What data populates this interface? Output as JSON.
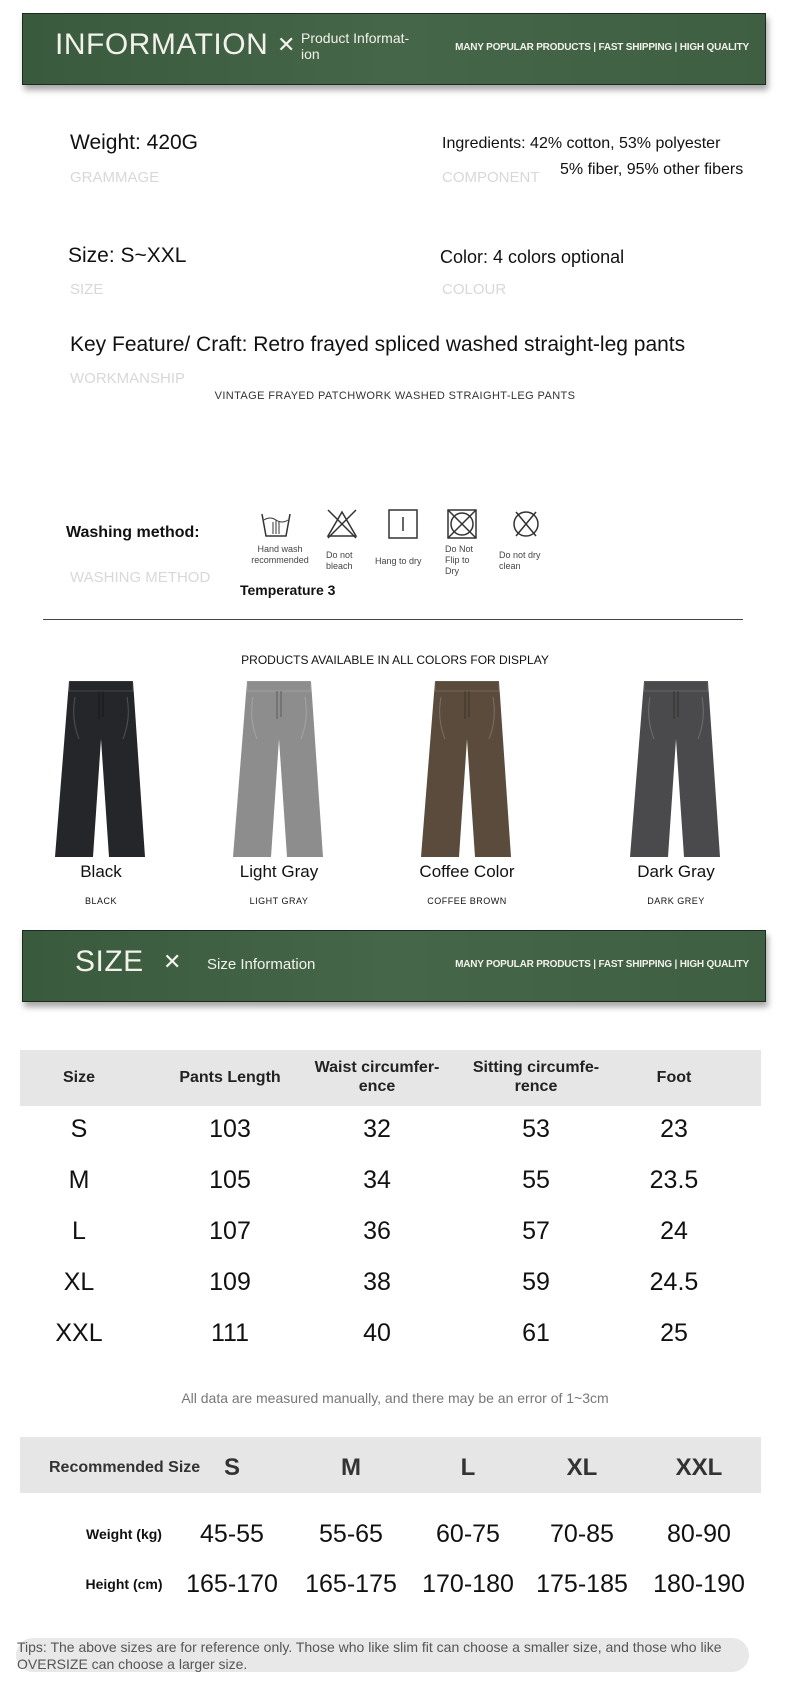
{
  "info_banner": {
    "title": "INFORMATION",
    "subtitle": "Product Informat-\nion",
    "tagline": "MANY POPULAR PRODUCTS | FAST SHIPPING | HIGH QUALITY",
    "color": "#3f5f43"
  },
  "specs": {
    "weight": {
      "label": "Weight: 420G",
      "sub": "GRAMMAGE"
    },
    "ingredients": {
      "label": "Ingredients: 42% cotton, 53% polyester",
      "label2": "5% fiber, 95% other fibers",
      "sub": "COMPONENT"
    },
    "size": {
      "label": "Size: S~XXL",
      "sub": "SIZE"
    },
    "color": {
      "label": "Color: 4 colors optional",
      "sub": "COLOUR"
    },
    "feature": {
      "label": "Key Feature/ Craft: Retro frayed spliced washed straight-leg pants",
      "sub": "WORKMANSHIP",
      "caption": "VINTAGE FRAYED PATCHWORK WASHED STRAIGHT-LEG PANTS"
    },
    "washing": {
      "label": "Washing method:",
      "sub": "WASHING METHOD",
      "temperature": "Temperature 3",
      "icons": [
        {
          "icon": "hand-wash-icon",
          "text": "Hand wash recommended"
        },
        {
          "icon": "do-not-bleach-icon",
          "text": "Do not bleach"
        },
        {
          "icon": "hang-to-dry-icon",
          "text": "Hang to dry"
        },
        {
          "icon": "do-not-tumble-dry-icon",
          "text": "Do Not Flip to Dry"
        },
        {
          "icon": "do-not-dry-clean-icon",
          "text": "Do not dry clean"
        }
      ]
    }
  },
  "colors_section": {
    "title": "PRODUCTS AVAILABLE IN ALL COLORS FOR DISPLAY",
    "items": [
      {
        "name": "Black",
        "sub": "BLACK",
        "color": "#25262a"
      },
      {
        "name": "Light Gray",
        "sub": "LIGHT GRAY",
        "color": "#8d8d8d"
      },
      {
        "name": "Coffee Color",
        "sub": "COFFEE BROWN",
        "color": "#5b4b3d"
      },
      {
        "name": "Dark Gray",
        "sub": "DARK GREY",
        "color": "#4a4a4c"
      }
    ]
  },
  "size_banner": {
    "title": "SIZE",
    "subtitle": "Size Information",
    "tagline": "MANY POPULAR PRODUCTS | FAST SHIPPING | HIGH QUALITY"
  },
  "size_table": {
    "headers": [
      "Size",
      "Pants Length",
      "Waist circumfer-\nence",
      "Sitting circumfe-\nrence",
      "Foot"
    ],
    "rows": [
      [
        "S",
        "103",
        "32",
        "53",
        "23"
      ],
      [
        "M",
        "105",
        "34",
        "55",
        "23.5"
      ],
      [
        "L",
        "107",
        "36",
        "57",
        "24"
      ],
      [
        "XL",
        "109",
        "38",
        "59",
        "24.5"
      ],
      [
        "XXL",
        "111",
        "40",
        "61",
        "25"
      ]
    ],
    "note": "All data are measured manually, and there may be an error of 1~3cm"
  },
  "recommended": {
    "headers": [
      "Recommended Size",
      "S",
      "M",
      "L",
      "XL",
      "XXL"
    ],
    "rows": [
      [
        "Weight (kg)",
        "45-55",
        "55-65",
        "60-75",
        "70-85",
        "80-90"
      ],
      [
        "Height (cm)",
        "165-170",
        "165-175",
        "170-180",
        "175-185",
        "180-190"
      ]
    ]
  },
  "tips": "Tips: The above sizes are for reference only. Those who like slim fit can choose a smaller size, and those who like OVERSIZE can choose a larger size."
}
